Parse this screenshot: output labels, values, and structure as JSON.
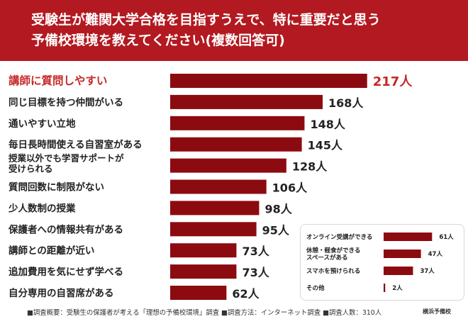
{
  "header": {
    "title_line1": "受験生が難関大学合格を目指すうえで、特に重要だと思う",
    "title_line2": "予備校環境を教えてください(複数回答可)"
  },
  "colors": {
    "header_bg": "#b31920",
    "bar": "#8c0b11",
    "highlight_text": "#c62828",
    "text": "#222222"
  },
  "chart_data": [
    {
      "type": "bar",
      "orientation": "horizontal",
      "categories": [
        "講師に質問しやすい",
        "同じ目標を持つ仲間がいる",
        "通いやすい立地",
        "毎日長時間使える自習室がある",
        "授業以外でも学習サポートが受けられる",
        "質問回数に制限がない",
        "少人数制の授業",
        "保護者への情報共有がある",
        "講師との距離が近い",
        "追加費用を気にせず学べる",
        "自分専用の自習席がある"
      ],
      "category_label_lines": [
        [
          "講師に質問しやすい"
        ],
        [
          "同じ目標を持つ仲間がいる"
        ],
        [
          "通いやすい立地"
        ],
        [
          "毎日長時間使える自習室がある"
        ],
        [
          "授業以外でも学習サポートが",
          "受けられる"
        ],
        [
          "質問回数に制限がない"
        ],
        [
          "少人数制の授業"
        ],
        [
          "保護者への情報共有がある"
        ],
        [
          "講師との距離が近い"
        ],
        [
          "追加費用を気にせず学べる"
        ],
        [
          "自分専用の自習席がある"
        ]
      ],
      "values": [
        217,
        168,
        148,
        145,
        128,
        106,
        98,
        95,
        73,
        73,
        62
      ],
      "value_labels": [
        "217人",
        "168人",
        "148人",
        "145人",
        "128人",
        "106人",
        "98人",
        "95人",
        "73人",
        "73人",
        "62人"
      ],
      "highlight_index": 0,
      "unit": "人"
    },
    {
      "type": "bar",
      "orientation": "horizontal",
      "categories": [
        "オンライン受講ができる",
        "休憩・軽食ができるスペースがある",
        "スマホを預けられる",
        "その他"
      ],
      "category_label_lines": [
        [
          "オンライン受講ができる"
        ],
        [
          "休憩・軽食ができる",
          "スペースがある"
        ],
        [
          "スマホを預けられる"
        ],
        [
          "その他"
        ]
      ],
      "values": [
        61,
        47,
        37,
        2
      ],
      "value_labels": [
        "61人",
        "47人",
        "37人",
        "2人"
      ],
      "unit": "人"
    }
  ],
  "footer": {
    "note": "■調査概要：受験生の保護者が考える「理想の予備校環境」調査 ■調査方法：インターネット調査 ■調査人数：310人",
    "logo": "横浜予備校"
  }
}
